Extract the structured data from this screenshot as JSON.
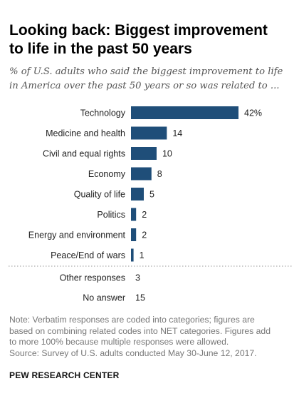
{
  "header": {
    "title_line1": "Looking back: Biggest improvement",
    "title_line2": "to life in the past 50 years",
    "subtitle_line1": "% of U.S. adults who said the biggest improvement to life",
    "subtitle_line2": "in America over the past 50 years or so was related to ..."
  },
  "chart_data": {
    "type": "bar",
    "orientation": "horizontal",
    "categories": [
      "Technology",
      "Medicine and health",
      "Civil and equal rights",
      "Economy",
      "Quality of life",
      "Politics",
      "Energy and environment",
      "Peace/End of wars"
    ],
    "values": [
      42,
      14,
      10,
      8,
      5,
      2,
      2,
      1
    ],
    "value_labels": [
      "42%",
      "14",
      "10",
      "8",
      "5",
      "2",
      "2",
      "1"
    ],
    "bar_color": "#1f4e79",
    "extra_rows": [
      {
        "label": "Other responses",
        "value": 3,
        "value_label": "3"
      },
      {
        "label": "No answer",
        "value": 15,
        "value_label": "15"
      }
    ],
    "xlim": [
      0,
      42
    ],
    "grid": false,
    "legend": "none"
  },
  "footer": {
    "note_line1": "Note: Verbatim responses are coded into categories; figures are",
    "note_line2": "based on combining related codes into NET categories. Figures add",
    "note_line3": "to more 100% because multiple responses were allowed.",
    "source": "Source: Survey of U.S. adults conducted May 30-June 12, 2017.",
    "brand": "PEW RESEARCH CENTER"
  }
}
